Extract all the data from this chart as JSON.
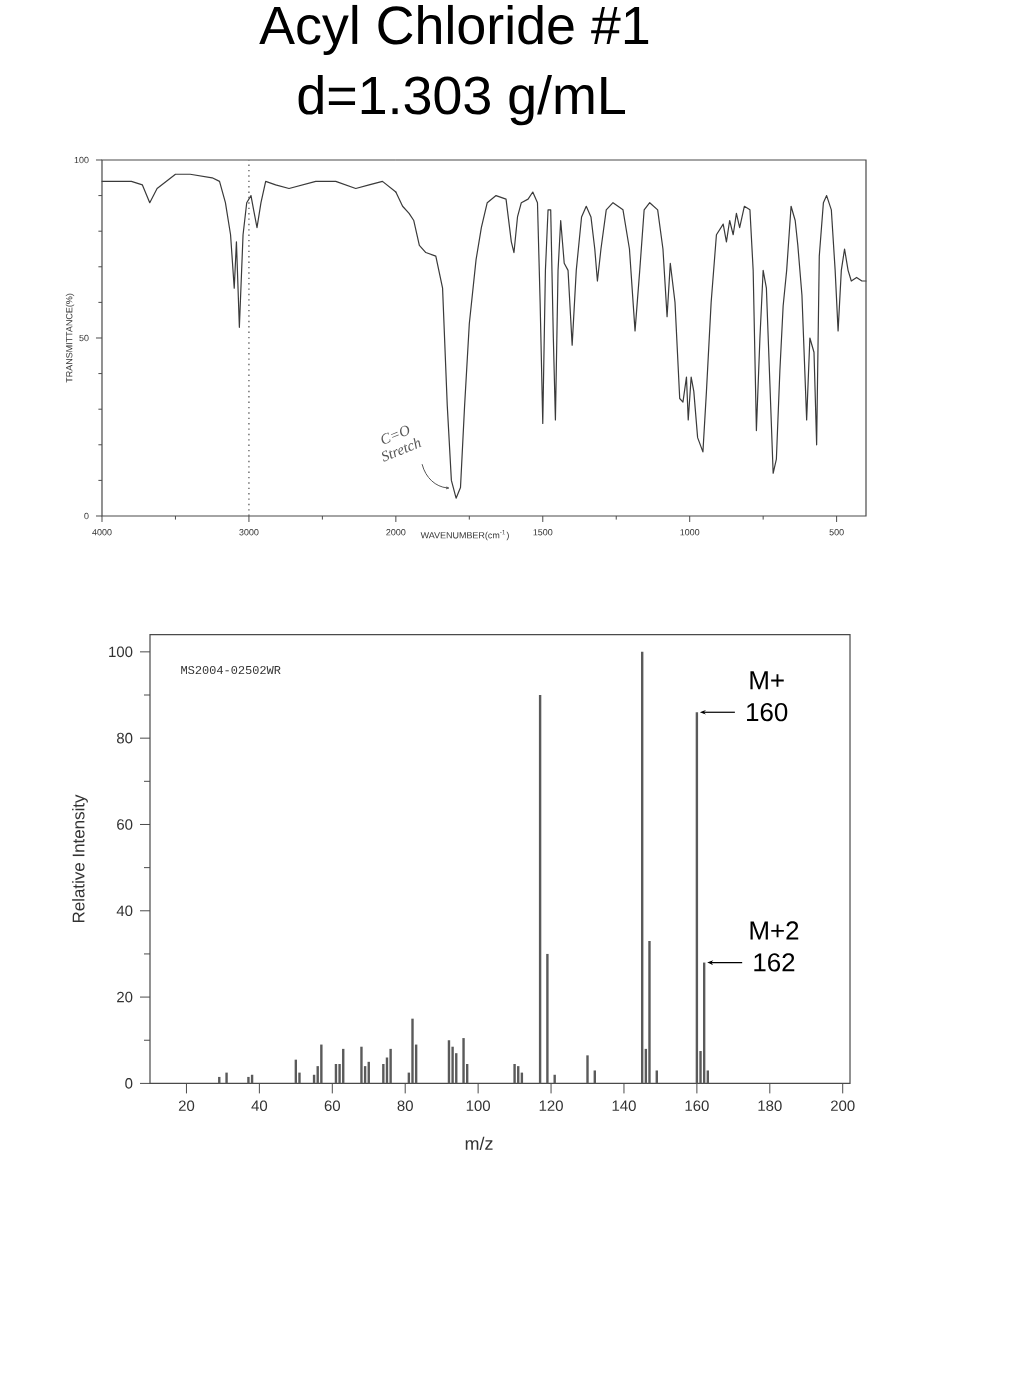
{
  "chart_data": [
    {
      "type": "line",
      "title": "Acyl Chloride #1",
      "subtitle": "d=1.303 g/mL",
      "ylabel": "TRANSMITTANCE(%)",
      "color": "#3a3a3a",
      "x": [
        4000,
        3800,
        3725,
        3675,
        3625,
        3500,
        3400,
        3250,
        3200,
        3160,
        3125,
        3100,
        3085,
        3065,
        3040,
        3015,
        2986,
        2968,
        2945,
        2918,
        2886,
        2818,
        2727,
        2545,
        2409,
        2273,
        2182,
        2091,
        2000
      ],
      "values": [
        94,
        94,
        93,
        88,
        92,
        96,
        96,
        95,
        94,
        88,
        79,
        64,
        77,
        53,
        79,
        88,
        90,
        86,
        81,
        88,
        94,
        93,
        92,
        94,
        94,
        92,
        93,
        94,
        91
      ],
      "xlim": [
        4000,
        2000
      ],
      "ylim": [
        0,
        100
      ],
      "xticks": [
        4000,
        {
          "value": 3500,
          "label": null
        },
        3000,
        {
          "value": 2500,
          "label": null
        }
      ],
      "yticks": [
        0,
        {
          "value": 10,
          "label": null
        },
        {
          "value": 20,
          "label": null
        },
        {
          "value": 30,
          "label": null
        },
        {
          "value": 40,
          "label": null
        },
        50,
        {
          "value": 60,
          "label": null
        },
        {
          "value": 70,
          "label": null
        },
        {
          "value": 80,
          "label": null
        },
        {
          "value": 90,
          "label": null
        },
        100
      ],
      "ref_lines": [
        {
          "axis": "x",
          "value": 3000,
          "line_style": "dotted",
          "color": "#666666"
        }
      ]
    },
    {
      "type": "line",
      "xlabel": "WAVENUMBER(cm$^{-1}$)",
      "color": "#3a3a3a",
      "tick_labels": "x",
      "x": [
        2000,
        1977,
        1955,
        1939,
        1920,
        1898,
        1864,
        1841,
        1825,
        1811,
        1795,
        1780,
        1766,
        1750,
        1727,
        1709,
        1689,
        1659,
        1625,
        1607,
        1598,
        1586,
        1573,
        1550,
        1534,
        1518,
        1509,
        1500,
        1491,
        1482,
        1473,
        1464,
        1457,
        1448,
        1439,
        1427,
        1414,
        1400,
        1386,
        1368,
        1352,
        1336,
        1323,
        1314,
        1302,
        1284,
        1261,
        1227,
        1205,
        1186,
        1170,
        1155,
        1136,
        1109,
        1091,
        1077,
        1066,
        1050,
        1034,
        1023,
        1011,
        1005,
        995,
        986,
        973,
        955,
        943,
        927,
        909,
        886,
        875,
        864,
        852,
        841,
        830,
        814,
        795,
        784,
        773,
        761,
        750,
        739,
        727,
        716,
        705,
        693,
        682,
        670,
        655,
        641,
        632,
        618,
        602,
        591,
        577,
        568,
        559,
        545,
        534,
        518,
        505,
        495,
        484,
        473,
        461,
        450,
        432,
        414,
        400
      ],
      "values": [
        91,
        87,
        85,
        83,
        76,
        74,
        73,
        64,
        31,
        10,
        5,
        8,
        31,
        54,
        72,
        81,
        88,
        90,
        89,
        77,
        74,
        84,
        88,
        89,
        91,
        88,
        60,
        26,
        69,
        86,
        86,
        50,
        27,
        69,
        83,
        71,
        69,
        48,
        69,
        84,
        87,
        84,
        75,
        66,
        75,
        86,
        88,
        86,
        75,
        52,
        69,
        86,
        88,
        86,
        75,
        56,
        71,
        60,
        33,
        32,
        39,
        27,
        39,
        35,
        22,
        18,
        35,
        60,
        79,
        82,
        77,
        83,
        79,
        85,
        81,
        87,
        86,
        69,
        24,
        50,
        69,
        64,
        37,
        12,
        16,
        41,
        59,
        69,
        87,
        83,
        76,
        62,
        27,
        50,
        46,
        20,
        73,
        88,
        90,
        86,
        69,
        52,
        69,
        75,
        69,
        66,
        67,
        66,
        66
      ],
      "xlim": [
        2000,
        400
      ],
      "ylim": [
        0,
        100
      ],
      "xticks": [
        2000,
        {
          "value": 1750,
          "label": null
        },
        1500,
        {
          "value": 1250,
          "label": null
        },
        1000,
        {
          "value": 750,
          "label": null
        },
        500
      ],
      "annotations": [
        {
          "text": "C=O Stretch",
          "x": 1795,
          "y": 5
        }
      ]
    },
    {
      "type": "bar",
      "xlabel": "m/z",
      "ylabel": "Relative Intensity",
      "color": "#5a5a5a",
      "x": [
        29,
        31,
        37,
        38,
        50,
        51,
        55,
        56,
        57,
        61,
        62,
        63,
        68,
        69,
        70,
        74,
        75,
        76,
        81,
        82,
        83,
        92,
        93,
        94,
        96,
        97,
        110,
        111,
        112,
        117,
        119,
        121,
        130,
        132,
        145,
        146,
        147,
        149,
        160,
        161,
        162,
        163
      ],
      "values": [
        1.5,
        2.5,
        1.5,
        2,
        5.5,
        2.5,
        2,
        4,
        9,
        4.5,
        4.5,
        8,
        8.5,
        4,
        5,
        4.5,
        6,
        8,
        2.5,
        15,
        9,
        10,
        8.5,
        7,
        10.5,
        4.5,
        4.5,
        4,
        2.5,
        90,
        30,
        2,
        6.5,
        3,
        100,
        8,
        33,
        3,
        86,
        7.5,
        28,
        3
      ],
      "xlim": [
        10,
        202
      ],
      "ylim": [
        0,
        104
      ],
      "xticks": [
        20,
        40,
        60,
        80,
        100,
        120,
        140,
        160,
        180,
        200
      ],
      "yticks": [
        0,
        {
          "value": 10,
          "label": null
        },
        20,
        {
          "value": 30,
          "label": null
        },
        40,
        {
          "value": 50,
          "label": null
        },
        60,
        {
          "value": 70,
          "label": null
        },
        80,
        {
          "value": 90,
          "label": null
        },
        100
      ],
      "annotations": [
        "MS2004-02502WR",
        {
          "text": "M+ 160",
          "x": 160,
          "y": 86
        },
        {
          "text": "M+2 162",
          "x": 162,
          "y": 28
        }
      ]
    }
  ]
}
